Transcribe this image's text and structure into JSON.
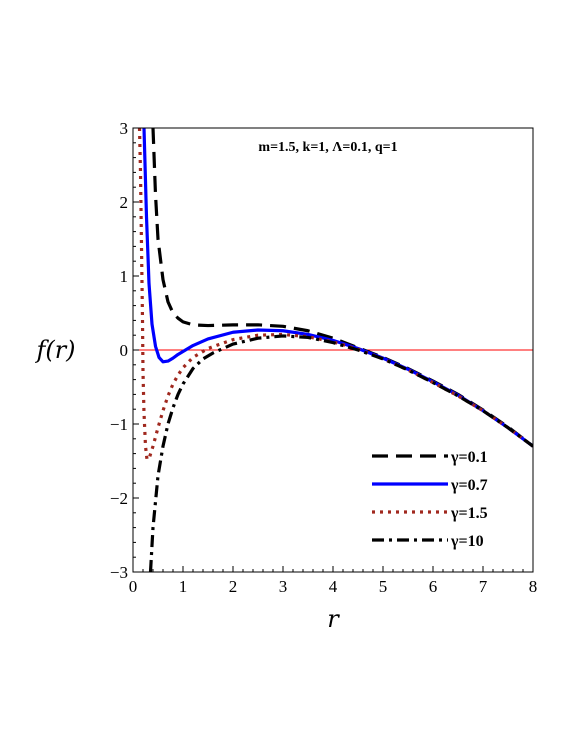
{
  "chart_data": {
    "type": "line",
    "title": "",
    "annotation": "m=1.5, k=1, Λ=0.1, q=1",
    "xlabel": "r",
    "ylabel": "f(r)",
    "xlim": [
      0,
      8
    ],
    "ylim": [
      -3,
      3
    ],
    "x_ticks": [
      0,
      1,
      2,
      3,
      4,
      5,
      6,
      7,
      8
    ],
    "x_tick_labels": [
      "0",
      "1",
      "2",
      "3",
      "4",
      "5",
      "6",
      "7",
      "8"
    ],
    "y_ticks": [
      -3,
      -2,
      -1,
      0,
      1,
      2,
      3
    ],
    "y_tick_labels": [
      "−3",
      "−2",
      "−1",
      "0",
      "1",
      "2",
      "3"
    ],
    "grid": false,
    "legend_position": "bottom-right",
    "reference_line": {
      "y": 0,
      "color": "#ff0000"
    },
    "series": [
      {
        "name": "γ=0.1",
        "color": "#000000",
        "style": "dash",
        "points": [
          [
            0.4,
            3.0
          ],
          [
            0.45,
            2.1
          ],
          [
            0.5,
            1.5
          ],
          [
            0.6,
            0.95
          ],
          [
            0.7,
            0.65
          ],
          [
            0.8,
            0.5
          ],
          [
            0.9,
            0.43
          ],
          [
            1.0,
            0.38
          ],
          [
            1.2,
            0.34
          ],
          [
            1.5,
            0.33
          ],
          [
            2.0,
            0.34
          ],
          [
            2.5,
            0.34
          ],
          [
            3.0,
            0.32
          ],
          [
            3.5,
            0.26
          ],
          [
            4.0,
            0.16
          ],
          [
            4.5,
            0.03
          ],
          [
            5.0,
            -0.1
          ],
          [
            5.5,
            -0.25
          ],
          [
            6.0,
            -0.42
          ],
          [
            6.5,
            -0.6
          ],
          [
            7.0,
            -0.81
          ],
          [
            7.5,
            -1.04
          ],
          [
            8.0,
            -1.3
          ]
        ]
      },
      {
        "name": "γ=0.7",
        "color": "#0000ff",
        "style": "solid",
        "points": [
          [
            0.22,
            3.0
          ],
          [
            0.27,
            1.8
          ],
          [
            0.32,
            0.9
          ],
          [
            0.38,
            0.35
          ],
          [
            0.45,
            0.05
          ],
          [
            0.52,
            -0.1
          ],
          [
            0.6,
            -0.16
          ],
          [
            0.7,
            -0.15
          ],
          [
            0.8,
            -0.11
          ],
          [
            0.9,
            -0.06
          ],
          [
            1.0,
            -0.02
          ],
          [
            1.2,
            0.06
          ],
          [
            1.5,
            0.15
          ],
          [
            2.0,
            0.24
          ],
          [
            2.5,
            0.27
          ],
          [
            3.0,
            0.26
          ],
          [
            3.5,
            0.21
          ],
          [
            4.0,
            0.13
          ],
          [
            4.5,
            0.02
          ],
          [
            5.0,
            -0.11
          ],
          [
            5.5,
            -0.26
          ],
          [
            6.0,
            -0.43
          ],
          [
            6.5,
            -0.61
          ],
          [
            7.0,
            -0.82
          ],
          [
            7.5,
            -1.05
          ],
          [
            8.0,
            -1.3
          ]
        ]
      },
      {
        "name": "γ=1.5",
        "color": "#a0281e",
        "style": "dot",
        "points": [
          [
            0.13,
            3.0
          ],
          [
            0.15,
            2.4
          ],
          [
            0.17,
            1.4
          ],
          [
            0.19,
            0.4
          ],
          [
            0.2,
            -0.3
          ],
          [
            0.22,
            -0.85
          ],
          [
            0.25,
            -1.3
          ],
          [
            0.28,
            -1.48
          ],
          [
            0.33,
            -1.45
          ],
          [
            0.4,
            -1.3
          ],
          [
            0.5,
            -1.05
          ],
          [
            0.6,
            -0.82
          ],
          [
            0.7,
            -0.62
          ],
          [
            0.8,
            -0.46
          ],
          [
            0.9,
            -0.34
          ],
          [
            1.0,
            -0.24
          ],
          [
            1.2,
            -0.1
          ],
          [
            1.5,
            0.02
          ],
          [
            1.7,
            0.07
          ],
          [
            2.0,
            0.14
          ],
          [
            2.5,
            0.2
          ],
          [
            3.0,
            0.21
          ],
          [
            3.5,
            0.18
          ],
          [
            4.0,
            0.11
          ],
          [
            4.5,
            0.01
          ],
          [
            5.0,
            -0.12
          ],
          [
            5.5,
            -0.27
          ],
          [
            6.0,
            -0.44
          ],
          [
            6.5,
            -0.62
          ],
          [
            7.0,
            -0.82
          ],
          [
            7.5,
            -1.05
          ],
          [
            8.0,
            -1.3
          ]
        ]
      },
      {
        "name": "γ=10",
        "color": "#000000",
        "style": "dashdot",
        "points": [
          [
            0.35,
            -3.0
          ],
          [
            0.4,
            -2.4
          ],
          [
            0.5,
            -1.7
          ],
          [
            0.6,
            -1.3
          ],
          [
            0.7,
            -1.0
          ],
          [
            0.8,
            -0.78
          ],
          [
            0.9,
            -0.6
          ],
          [
            1.0,
            -0.46
          ],
          [
            1.2,
            -0.25
          ],
          [
            1.4,
            -0.12
          ],
          [
            1.6,
            -0.04
          ],
          [
            1.8,
            0.02
          ],
          [
            2.0,
            0.08
          ],
          [
            2.5,
            0.16
          ],
          [
            3.0,
            0.19
          ],
          [
            3.5,
            0.17
          ],
          [
            4.0,
            0.1
          ],
          [
            4.5,
            0.0
          ],
          [
            5.0,
            -0.12
          ],
          [
            5.5,
            -0.27
          ],
          [
            6.0,
            -0.44
          ],
          [
            6.5,
            -0.62
          ],
          [
            7.0,
            -0.82
          ],
          [
            7.5,
            -1.05
          ],
          [
            8.0,
            -1.3
          ]
        ]
      }
    ]
  }
}
